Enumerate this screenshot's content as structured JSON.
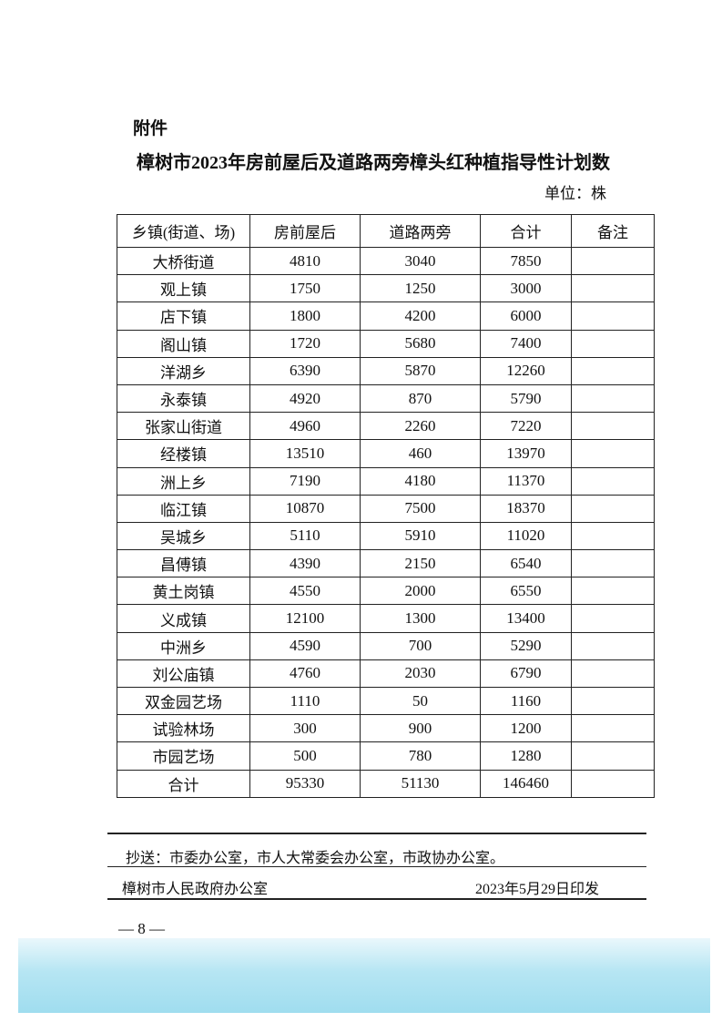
{
  "attachment_label": "附件",
  "title": "樟树市2023年房前屋后及道路两旁樟头红种植指导性计划数",
  "unit": "单位：株",
  "table": {
    "headers": [
      "乡镇(街道、场)",
      "房前屋后",
      "道路两旁",
      "合计",
      "备注"
    ],
    "rows": [
      [
        "大桥街道",
        "4810",
        "3040",
        "7850",
        ""
      ],
      [
        "观上镇",
        "1750",
        "1250",
        "3000",
        ""
      ],
      [
        "店下镇",
        "1800",
        "4200",
        "6000",
        ""
      ],
      [
        "阁山镇",
        "1720",
        "5680",
        "7400",
        ""
      ],
      [
        "洋湖乡",
        "6390",
        "5870",
        "12260",
        ""
      ],
      [
        "永泰镇",
        "4920",
        "870",
        "5790",
        ""
      ],
      [
        "张家山街道",
        "4960",
        "2260",
        "7220",
        ""
      ],
      [
        "经楼镇",
        "13510",
        "460",
        "13970",
        ""
      ],
      [
        "洲上乡",
        "7190",
        "4180",
        "11370",
        ""
      ],
      [
        "临江镇",
        "10870",
        "7500",
        "18370",
        ""
      ],
      [
        "吴城乡",
        "5110",
        "5910",
        "11020",
        ""
      ],
      [
        "昌傅镇",
        "4390",
        "2150",
        "6540",
        ""
      ],
      [
        "黄土岗镇",
        "4550",
        "2000",
        "6550",
        ""
      ],
      [
        "义成镇",
        "12100",
        "1300",
        "13400",
        ""
      ],
      [
        "中洲乡",
        "4590",
        "700",
        "5290",
        ""
      ],
      [
        "刘公庙镇",
        "4760",
        "2030",
        "6790",
        ""
      ],
      [
        "双金园艺场",
        "1110",
        "50",
        "1160",
        ""
      ],
      [
        "试验林场",
        "300",
        "900",
        "1200",
        ""
      ],
      [
        "市园艺场",
        "500",
        "780",
        "1280",
        ""
      ],
      [
        "合计",
        "95330",
        "51130",
        "146460",
        ""
      ]
    ]
  },
  "footer": {
    "cc": "抄送：市委办公室，市人大常委会办公室，市政协办公室。",
    "issuer": "樟树市人民政府办公室",
    "date": "2023年5月29日印发"
  },
  "page_number": "— 8 —"
}
